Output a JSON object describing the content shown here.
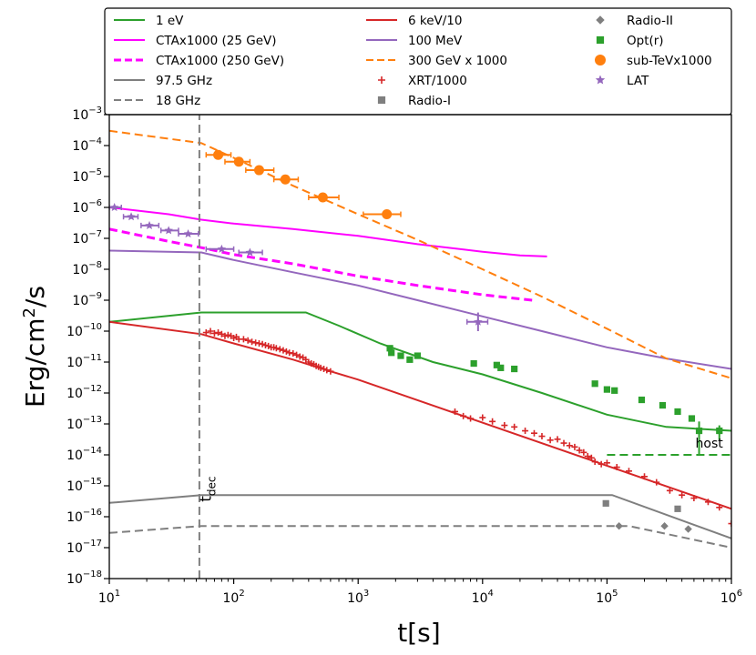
{
  "chart_data": {
    "type": "line",
    "xlabel": "t[s]",
    "ylabel": "Erg/cm2/s",
    "ylabel_parts": {
      "base": "Erg/cm",
      "sup": "2",
      "tail": "/s"
    },
    "xscale": "log",
    "yscale": "log",
    "xlim": [
      10,
      1000000
    ],
    "ylim": [
      1e-18,
      0.001
    ],
    "x_ticks": [
      {
        "value": 10,
        "base": "10",
        "exp": "1"
      },
      {
        "value": 100,
        "base": "10",
        "exp": "2"
      },
      {
        "value": 1000,
        "base": "10",
        "exp": "3"
      },
      {
        "value": 10000,
        "base": "10",
        "exp": "4"
      },
      {
        "value": 100000,
        "base": "10",
        "exp": "5"
      },
      {
        "value": 1000000,
        "base": "10",
        "exp": "6"
      }
    ],
    "y_ticks": [
      {
        "value": 1e-18,
        "base": "10",
        "exp": "−18"
      },
      {
        "value": 1e-17,
        "base": "10",
        "exp": "−17"
      },
      {
        "value": 1e-16,
        "base": "10",
        "exp": "−16"
      },
      {
        "value": 1e-15,
        "base": "10",
        "exp": "−15"
      },
      {
        "value": 1e-14,
        "base": "10",
        "exp": "−14"
      },
      {
        "value": 1e-13,
        "base": "10",
        "exp": "−13"
      },
      {
        "value": 1e-12,
        "base": "10",
        "exp": "−12"
      },
      {
        "value": 1e-11,
        "base": "10",
        "exp": "−11"
      },
      {
        "value": 1e-10,
        "base": "10",
        "exp": "−10"
      },
      {
        "value": 1e-09,
        "base": "10",
        "exp": "−9"
      },
      {
        "value": 1e-08,
        "base": "10",
        "exp": "−8"
      },
      {
        "value": 1e-07,
        "base": "10",
        "exp": "−7"
      },
      {
        "value": 1e-06,
        "base": "10",
        "exp": "−6"
      },
      {
        "value": 1e-05,
        "base": "10",
        "exp": "−5"
      },
      {
        "value": 0.0001,
        "base": "10",
        "exp": "−4"
      },
      {
        "value": 0.001,
        "base": "10",
        "exp": "−3"
      }
    ],
    "legend_position": "top",
    "legend_columns": [
      [
        {
          "label": "1 eV",
          "kind": "line",
          "color": "#2ca02c",
          "dash": "solid"
        },
        {
          "label": "CTAx1000 (25 GeV)",
          "kind": "line",
          "color": "#ff00ff",
          "dash": "solid"
        },
        {
          "label": "CTAx1000 (250 GeV)",
          "kind": "line",
          "color": "#ff00ff",
          "dash": "dashed"
        },
        {
          "label": "97.5 GHz",
          "kind": "line",
          "color": "#7f7f7f",
          "dash": "solid"
        },
        {
          "label": "18 GHz",
          "kind": "line",
          "color": "#7f7f7f",
          "dash": "dashed"
        }
      ],
      [
        {
          "label": "6 keV/10",
          "kind": "line",
          "color": "#d62728",
          "dash": "solid"
        },
        {
          "label": "100 MeV",
          "kind": "line",
          "color": "#9467bd",
          "dash": "solid"
        },
        {
          "label": "300 GeV x 1000",
          "kind": "line",
          "color": "#ff7f0e",
          "dash": "dashed"
        },
        {
          "label": "XRT/1000",
          "kind": "marker",
          "marker": "plus",
          "color": "#d62728"
        },
        {
          "label": "Radio-I",
          "kind": "marker",
          "marker": "square",
          "color": "#7f7f7f"
        }
      ],
      [
        {
          "label": "Radio-II",
          "kind": "marker",
          "marker": "diamond",
          "color": "#7f7f7f"
        },
        {
          "label": "Opt(r)",
          "kind": "marker",
          "marker": "square",
          "color": "#2ca02c"
        },
        {
          "label": "sub-TeVx1000",
          "kind": "marker",
          "marker": "circle",
          "color": "#ff7f0e"
        },
        {
          "label": "LAT",
          "kind": "marker",
          "marker": "star",
          "color": "#9467bd"
        }
      ]
    ],
    "lines": [
      {
        "name": "1 eV",
        "color": "#2ca02c",
        "dash": "solid",
        "width": 2,
        "x": [
          10,
          55,
          200,
          380,
          700,
          1500,
          4000,
          10000,
          30000,
          100000,
          300000,
          1000000
        ],
        "y": [
          2e-10,
          4e-10,
          4e-10,
          4e-10,
          1.5e-10,
          4e-11,
          1e-11,
          4e-12,
          1e-12,
          2e-13,
          8e-14,
          6e-14
        ]
      },
      {
        "name": "CTAx1000 (25 GeV)",
        "color": "#ff00ff",
        "dash": "solid",
        "width": 2,
        "x": [
          10,
          30,
          55,
          100,
          300,
          1000,
          3000,
          10000,
          20000,
          33000
        ],
        "y": [
          1e-06,
          6e-07,
          4e-07,
          3e-07,
          2e-07,
          1.2e-07,
          6.5e-08,
          3.7e-08,
          2.8e-08,
          2.6e-08
        ]
      },
      {
        "name": "CTAx1000 (250 GeV)",
        "color": "#ff00ff",
        "dash": "dashed",
        "width": 3,
        "x": [
          10,
          30,
          55,
          100,
          300,
          1000,
          3000,
          10000,
          25000
        ],
        "y": [
          2e-07,
          8e-08,
          5e-08,
          3e-08,
          1.5e-08,
          6e-09,
          3e-09,
          1.5e-09,
          1e-09
        ]
      },
      {
        "name": "97.5 GHz",
        "color": "#7f7f7f",
        "dash": "solid",
        "width": 2,
        "x": [
          10,
          55,
          110000,
          1000000
        ],
        "y": [
          2.8e-16,
          5e-16,
          5e-16,
          2e-17
        ]
      },
      {
        "name": "18 GHz",
        "color": "#7f7f7f",
        "dash": "dashed",
        "width": 2,
        "x": [
          10,
          55,
          150000,
          1000000
        ],
        "y": [
          3e-17,
          5e-17,
          5e-17,
          1e-17
        ]
      },
      {
        "name": "6 keV/10",
        "color": "#d62728",
        "dash": "solid",
        "width": 2,
        "x": [
          10,
          55,
          100,
          300,
          600,
          1000,
          1000000
        ],
        "y": [
          2e-10,
          8e-11,
          4e-11,
          1.2e-11,
          5e-12,
          2.7e-12,
          1.8e-16
        ]
      },
      {
        "name": "100 MeV",
        "color": "#9467bd",
        "dash": "solid",
        "width": 2,
        "x": [
          10,
          55,
          100,
          300,
          1000,
          3000,
          10000,
          30000,
          100000,
          300000,
          1000000
        ],
        "y": [
          4e-08,
          3.5e-08,
          2e-08,
          8e-09,
          3e-09,
          1e-09,
          3e-10,
          1e-10,
          3e-11,
          1.3e-11,
          6e-12
        ]
      },
      {
        "name": "300 GeV x 1000",
        "color": "#ff7f0e",
        "dash": "dashed",
        "width": 2,
        "x": [
          10,
          55,
          100,
          300,
          1000,
          3000,
          10000,
          30000,
          100000,
          300000,
          1000000
        ],
        "y": [
          0.0003,
          0.00012,
          4e-05,
          5e-06,
          6e-07,
          9e-08,
          1e-08,
          1.3e-09,
          1.2e-10,
          1.3e-11,
          3e-12
        ]
      },
      {
        "name": "host",
        "color": "#2ca02c",
        "dash": "dashed",
        "width": 2,
        "x": [
          100000,
          1000000
        ],
        "y": [
          1e-14,
          1e-14
        ]
      },
      {
        "name": "t_dec",
        "color": "#7f7f7f",
        "dash": "dashed",
        "width": 2,
        "x": [
          53,
          53
        ],
        "y": [
          1e-18,
          0.001
        ]
      }
    ],
    "scatter_series": [
      {
        "name": "XRT/1000",
        "marker": "plus",
        "color": "#d62728",
        "points": [
          [
            60,
            9e-11
          ],
          [
            65,
            1e-10
          ],
          [
            70,
            8.5e-11
          ],
          [
            75,
            9e-11
          ],
          [
            80,
            8e-11
          ],
          [
            85,
            7e-11
          ],
          [
            90,
            7.5e-11
          ],
          [
            95,
            7e-11
          ],
          [
            100,
            6e-11
          ],
          [
            105,
            6.5e-11
          ],
          [
            110,
            5.5e-11
          ],
          [
            120,
            5.5e-11
          ],
          [
            130,
            5e-11
          ],
          [
            140,
            4.5e-11
          ],
          [
            150,
            4.2e-11
          ],
          [
            160,
            4e-11
          ],
          [
            170,
            3.8e-11
          ],
          [
            180,
            3.5e-11
          ],
          [
            190,
            3.3e-11
          ],
          [
            200,
            3e-11
          ],
          [
            210,
            3e-11
          ],
          [
            220,
            2.8e-11
          ],
          [
            235,
            2.6e-11
          ],
          [
            250,
            2.4e-11
          ],
          [
            265,
            2.2e-11
          ],
          [
            280,
            2e-11
          ],
          [
            300,
            1.9e-11
          ],
          [
            320,
            1.7e-11
          ],
          [
            340,
            1.5e-11
          ],
          [
            360,
            1.4e-11
          ],
          [
            380,
            1.2e-11
          ],
          [
            400,
            1e-11
          ],
          [
            420,
            9e-12
          ],
          [
            440,
            8.5e-12
          ],
          [
            460,
            7.5e-12
          ],
          [
            480,
            7e-12
          ],
          [
            500,
            6.5e-12
          ],
          [
            530,
            6e-12
          ],
          [
            560,
            5.5e-12
          ],
          [
            600,
            5e-12
          ],
          [
            6000,
            2.5e-13
          ],
          [
            7000,
            1.8e-13
          ],
          [
            8000,
            1.5e-13
          ],
          [
            10000,
            1.6e-13
          ],
          [
            12000,
            1.2e-13
          ],
          [
            15000,
            9e-14
          ],
          [
            18000,
            8e-14
          ],
          [
            22000,
            6e-14
          ],
          [
            26000,
            5e-14
          ],
          [
            30000,
            4e-14
          ],
          [
            35000,
            3e-14
          ],
          [
            40000,
            3.2e-14
          ],
          [
            45000,
            2.4e-14
          ],
          [
            50000,
            2e-14
          ],
          [
            55000,
            1.8e-14
          ],
          [
            60000,
            1.4e-14
          ],
          [
            65000,
            1.2e-14
          ],
          [
            70000,
            9e-15
          ],
          [
            75000,
            8e-15
          ],
          [
            80000,
            6e-15
          ],
          [
            90000,
            5e-15
          ],
          [
            100000,
            5.5e-15
          ],
          [
            120000,
            4e-15
          ],
          [
            150000,
            3e-15
          ],
          [
            200000,
            2e-15
          ],
          [
            250000,
            1.3e-15
          ],
          [
            320000,
            7e-16
          ],
          [
            400000,
            5e-16
          ],
          [
            500000,
            4e-16
          ],
          [
            650000,
            3e-16
          ],
          [
            800000,
            2e-16
          ],
          [
            1000000,
            6e-17
          ]
        ]
      },
      {
        "name": "Radio-I",
        "marker": "square",
        "color": "#7f7f7f",
        "points": [
          [
            98000,
            2.7e-16
          ],
          [
            370000,
            1.8e-16
          ]
        ]
      },
      {
        "name": "Radio-II",
        "marker": "diamond",
        "color": "#7f7f7f",
        "points": [
          [
            125000,
            5e-17
          ],
          [
            290000,
            5e-17
          ],
          [
            450000,
            4e-17
          ]
        ]
      },
      {
        "name": "Opt(r)",
        "marker": "square",
        "color": "#2ca02c",
        "points": [
          [
            1800,
            2.8e-11
          ],
          [
            1850,
            2e-11
          ],
          [
            2200,
            1.6e-11
          ],
          [
            2600,
            1.2e-11
          ],
          [
            3000,
            1.6e-11
          ],
          [
            8500,
            9e-12
          ],
          [
            13000,
            8e-12
          ],
          [
            14000,
            6.5e-12
          ],
          [
            18000,
            6e-12
          ],
          [
            80000,
            2e-12
          ],
          [
            100000,
            1.3e-12
          ],
          [
            115000,
            1.2e-12
          ],
          [
            190000,
            6e-13
          ],
          [
            280000,
            4e-13
          ],
          [
            370000,
            2.5e-13
          ],
          [
            480000,
            1.5e-13
          ],
          [
            550000,
            6e-14
          ],
          [
            800000,
            6e-14
          ]
        ]
      },
      {
        "name": "sub-TeVx1000",
        "marker": "circle",
        "color": "#ff7f0e",
        "points": [
          [
            75,
            5e-05
          ],
          [
            110,
            3e-05
          ],
          [
            160,
            1.6e-05
          ],
          [
            260,
            8e-06
          ],
          [
            520,
            2.1e-06
          ],
          [
            1700,
            6e-07
          ]
        ]
      },
      {
        "name": "LAT",
        "marker": "star",
        "color": "#9467bd",
        "points": [
          [
            11,
            1e-06
          ],
          [
            15,
            5e-07
          ],
          [
            21,
            2.6e-07
          ],
          [
            30,
            1.8e-07
          ],
          [
            43,
            1.4e-07
          ],
          [
            80,
            4.5e-08
          ],
          [
            135,
            3.5e-08
          ],
          [
            9200,
            2e-10
          ]
        ]
      }
    ],
    "error_bars": [
      {
        "color": "#ff7f0e",
        "points": [
          [
            75,
            5e-05,
            60,
            95
          ],
          [
            110,
            3e-05,
            85,
            135
          ],
          [
            160,
            1.6e-05,
            125,
            210
          ],
          [
            260,
            8e-06,
            210,
            330
          ],
          [
            520,
            2.1e-06,
            400,
            700
          ],
          [
            1700,
            6e-07,
            1100,
            2200
          ]
        ]
      },
      {
        "color": "#9467bd",
        "points": [
          [
            11,
            1e-06,
            10,
            12.5
          ],
          [
            15,
            5e-07,
            13,
            17
          ],
          [
            21,
            2.6e-07,
            18,
            25
          ],
          [
            30,
            1.8e-07,
            26,
            36
          ],
          [
            43,
            1.4e-07,
            36,
            52
          ],
          [
            80,
            4.5e-08,
            60,
            100
          ],
          [
            135,
            3.5e-08,
            110,
            170
          ],
          [
            9200,
            2e-10,
            7500,
            11000
          ]
        ]
      }
    ],
    "vertical_error": [
      {
        "color": "#9467bd",
        "x": 9200,
        "ylo": 1e-10,
        "yhi": 4e-10
      },
      {
        "color": "#2ca02c",
        "x": 550000,
        "ylo": 1e-14,
        "yhi": 1.2e-13
      },
      {
        "color": "#2ca02c",
        "x": 800000,
        "ylo": 3e-14,
        "yhi": 9e-14
      }
    ],
    "annotations": [
      {
        "text": "host",
        "x": 550000,
        "y": 1.5e-14
      },
      {
        "text_base": "t",
        "text_sub": "dec",
        "x": 60,
        "y": 3e-16,
        "rotate": -90
      }
    ]
  }
}
